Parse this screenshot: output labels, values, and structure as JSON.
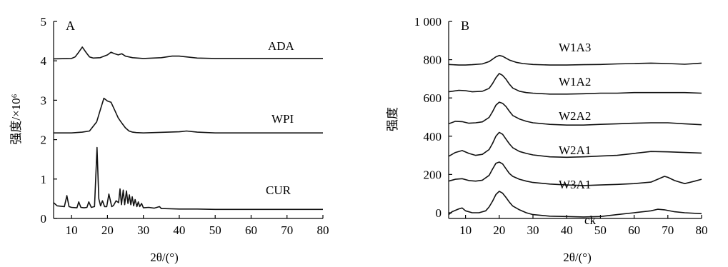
{
  "chart_data": [
    {
      "panel": "A",
      "type": "line",
      "xlabel": "2θ/(°)",
      "ylabel": "强度/×10⁶",
      "xlim": [
        5,
        80
      ],
      "ylim": [
        0,
        5
      ],
      "xticks": [
        10,
        20,
        30,
        40,
        50,
        60,
        70,
        80
      ],
      "yticks": [
        0,
        1,
        2,
        3,
        4,
        5
      ],
      "series": [
        {
          "name": "ADA",
          "x": [
            5,
            10,
            11,
            12,
            13,
            14,
            15,
            16,
            18,
            20,
            21,
            22,
            23,
            24,
            25,
            27,
            30,
            35,
            38,
            40,
            42,
            45,
            50,
            60,
            70,
            80
          ],
          "y": [
            4.05,
            4.06,
            4.1,
            4.22,
            4.35,
            4.22,
            4.1,
            4.07,
            4.08,
            4.15,
            4.22,
            4.18,
            4.15,
            4.18,
            4.12,
            4.08,
            4.06,
            4.08,
            4.12,
            4.12,
            4.1,
            4.07,
            4.06,
            4.06,
            4.06,
            4.06
          ]
        },
        {
          "name": "WPI",
          "x": [
            5,
            10,
            13,
            15,
            17,
            18,
            19,
            20,
            21,
            22,
            23,
            24,
            25,
            26,
            27,
            28,
            30,
            40,
            42,
            45,
            50,
            60,
            70,
            80
          ],
          "y": [
            2.17,
            2.17,
            2.19,
            2.22,
            2.45,
            2.75,
            3.05,
            2.98,
            2.95,
            2.75,
            2.55,
            2.42,
            2.3,
            2.22,
            2.19,
            2.18,
            2.17,
            2.2,
            2.22,
            2.19,
            2.17,
            2.17,
            2.17,
            2.17
          ]
        },
        {
          "name": "CUR",
          "x": [
            5,
            6,
            8,
            8.7,
            9.3,
            10,
            11.5,
            12,
            12.6,
            13.5,
            14.3,
            14.8,
            15.5,
            16.4,
            17.1,
            17.6,
            18.1,
            18.6,
            19.2,
            19.8,
            20.4,
            21.2,
            21.7,
            22.4,
            23.1,
            23.5,
            23.9,
            24.4,
            24.8,
            25.3,
            25.7,
            26.1,
            26.5,
            26.9,
            27.3,
            27.7,
            28.2,
            28.6,
            29.0,
            29.5,
            30.0,
            31.5,
            33,
            34.5,
            35,
            36,
            40,
            45,
            50,
            60,
            70,
            80
          ],
          "y": [
            0.4,
            0.32,
            0.3,
            0.58,
            0.3,
            0.28,
            0.27,
            0.42,
            0.28,
            0.27,
            0.28,
            0.42,
            0.28,
            0.3,
            1.8,
            0.5,
            0.32,
            0.45,
            0.3,
            0.3,
            0.62,
            0.3,
            0.33,
            0.45,
            0.4,
            0.75,
            0.35,
            0.72,
            0.35,
            0.7,
            0.38,
            0.6,
            0.35,
            0.55,
            0.32,
            0.48,
            0.3,
            0.42,
            0.3,
            0.38,
            0.27,
            0.28,
            0.26,
            0.3,
            0.25,
            0.25,
            0.24,
            0.24,
            0.23,
            0.23,
            0.23,
            0.23
          ]
        }
      ]
    },
    {
      "panel": "B",
      "type": "line",
      "xlabel": "2θ/(°)",
      "ylabel": "强度",
      "xlim": [
        5,
        80
      ],
      "ylim": [
        -30,
        1000
      ],
      "xticks": [
        10,
        20,
        30,
        40,
        50,
        60,
        70,
        80
      ],
      "yticks": [
        0,
        200,
        400,
        600,
        800,
        1000
      ],
      "ytick_labels": [
        "0",
        "200",
        "400",
        "600",
        "800",
        "1 000"
      ],
      "series": [
        {
          "name": "W1A3",
          "x": [
            5,
            8,
            10,
            12,
            15,
            17,
            19,
            20,
            21,
            22,
            23,
            25,
            27,
            30,
            35,
            40,
            45,
            50,
            55,
            60,
            65,
            70,
            75,
            80
          ],
          "y": [
            775,
            772,
            772,
            774,
            778,
            790,
            815,
            822,
            818,
            808,
            798,
            786,
            780,
            775,
            772,
            772,
            774,
            775,
            778,
            780,
            782,
            780,
            776,
            782
          ]
        },
        {
          "name": "W1A2",
          "x": [
            5,
            8,
            10,
            12,
            15,
            17,
            18,
            19,
            20,
            21,
            22,
            23,
            24,
            26,
            28,
            30,
            35,
            40,
            45,
            50,
            55,
            60,
            65,
            70,
            75,
            80
          ],
          "y": [
            632,
            640,
            638,
            632,
            635,
            650,
            675,
            705,
            728,
            718,
            698,
            672,
            652,
            635,
            628,
            625,
            620,
            620,
            622,
            625,
            625,
            628,
            628,
            628,
            628,
            625
          ]
        },
        {
          "name": "W2A2",
          "x": [
            5,
            7,
            9,
            11,
            13,
            15,
            17,
            18,
            19,
            20,
            21,
            22,
            23,
            24,
            26,
            28,
            30,
            35,
            40,
            45,
            50,
            55,
            60,
            65,
            70,
            75,
            80
          ],
          "y": [
            465,
            478,
            476,
            468,
            470,
            475,
            498,
            528,
            562,
            578,
            572,
            555,
            530,
            508,
            490,
            478,
            470,
            462,
            458,
            458,
            462,
            465,
            468,
            470,
            470,
            465,
            460
          ]
        },
        {
          "name": "W2A1",
          "x": [
            5,
            7,
            9,
            11,
            13,
            15,
            17,
            18,
            19,
            20,
            21,
            22,
            23,
            24,
            26,
            28,
            30,
            35,
            40,
            45,
            50,
            55,
            60,
            65,
            70,
            75,
            80
          ],
          "y": [
            295,
            315,
            325,
            310,
            300,
            305,
            330,
            362,
            400,
            420,
            410,
            385,
            360,
            340,
            320,
            310,
            302,
            292,
            290,
            292,
            296,
            300,
            310,
            320,
            318,
            315,
            312
          ]
        },
        {
          "name": "W3A1",
          "x": [
            5,
            7,
            9,
            11,
            13,
            15,
            17,
            18,
            19,
            20,
            21,
            22,
            23,
            24,
            26,
            28,
            30,
            35,
            40,
            45,
            50,
            55,
            60,
            65,
            67,
            69,
            70,
            72,
            75,
            78,
            80
          ],
          "y": [
            165,
            175,
            178,
            168,
            165,
            170,
            195,
            228,
            258,
            265,
            255,
            230,
            205,
            190,
            175,
            165,
            158,
            150,
            145,
            142,
            145,
            148,
            152,
            160,
            175,
            190,
            185,
            168,
            152,
            165,
            175
          ]
        },
        {
          "name": "ck",
          "x": [
            5,
            6,
            8,
            9,
            10,
            12,
            14,
            16,
            17,
            18,
            19,
            20,
            21,
            22,
            23,
            24,
            26,
            28,
            30,
            35,
            40,
            45,
            50,
            55,
            60,
            65,
            67,
            69,
            72,
            75,
            80
          ],
          "y": [
            -10,
            5,
            20,
            25,
            10,
            0,
            0,
            10,
            30,
            60,
            95,
            112,
            102,
            80,
            55,
            35,
            15,
            0,
            -10,
            -18,
            -20,
            -22,
            -20,
            -10,
            0,
            10,
            18,
            15,
            5,
            0,
            -5
          ]
        }
      ]
    }
  ]
}
